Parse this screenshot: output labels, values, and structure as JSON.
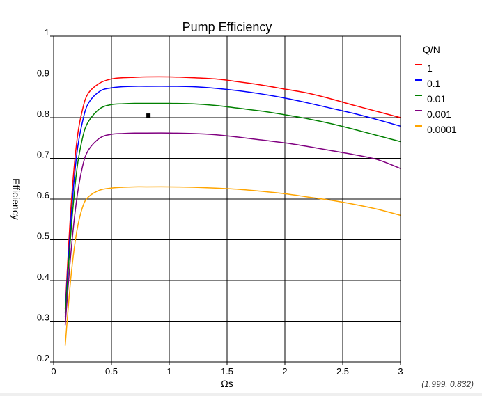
{
  "chart_data": {
    "type": "line",
    "title": "Pump Efficiency",
    "xlabel": "Ωs",
    "ylabel": "Efficiency",
    "xlim": [
      0,
      3
    ],
    "ylim": [
      0.2,
      1
    ],
    "xticks": [
      0,
      0.5,
      1,
      1.5,
      2,
      2.5,
      3
    ],
    "xtick_labels": [
      "0",
      "0.5",
      "1",
      "1.5",
      "2",
      "2.5",
      "3"
    ],
    "yticks": [
      0.2,
      0.3,
      0.4,
      0.5,
      0.6,
      0.7,
      0.8,
      0.9,
      1
    ],
    "ytick_labels": [
      "0.2",
      "0.3",
      "0.4",
      "0.5",
      "0.6",
      "0.7",
      "0.8",
      "0.9",
      "1"
    ],
    "grid": true,
    "legend_title": "Q/N",
    "legend_position": "top-right outside",
    "x": [
      0.1,
      0.15,
      0.2,
      0.25,
      0.3,
      0.4,
      0.5,
      0.6,
      0.7,
      0.8,
      1.0,
      1.2,
      1.4,
      1.6,
      1.8,
      2.0,
      2.2,
      2.4,
      2.6,
      2.8,
      3.0
    ],
    "series": [
      {
        "name": "1",
        "color": "#ff0000",
        "values": [
          0.33,
          0.58,
          0.74,
          0.82,
          0.86,
          0.885,
          0.895,
          0.898,
          0.899,
          0.9,
          0.9,
          0.898,
          0.895,
          0.888,
          0.88,
          0.87,
          0.86,
          0.846,
          0.83,
          0.815,
          0.8
        ]
      },
      {
        "name": "0.1",
        "color": "#0000ff",
        "values": [
          0.32,
          0.55,
          0.71,
          0.79,
          0.835,
          0.865,
          0.873,
          0.876,
          0.877,
          0.877,
          0.877,
          0.876,
          0.872,
          0.866,
          0.858,
          0.848,
          0.836,
          0.823,
          0.81,
          0.795,
          0.779
        ]
      },
      {
        "name": "0.01",
        "color": "#008000",
        "values": [
          0.31,
          0.52,
          0.67,
          0.75,
          0.79,
          0.822,
          0.832,
          0.834,
          0.835,
          0.835,
          0.835,
          0.834,
          0.83,
          0.823,
          0.816,
          0.807,
          0.797,
          0.785,
          0.771,
          0.756,
          0.741
        ]
      },
      {
        "name": "0.001",
        "color": "#800080",
        "values": [
          0.29,
          0.47,
          0.6,
          0.68,
          0.72,
          0.75,
          0.759,
          0.761,
          0.762,
          0.762,
          0.762,
          0.761,
          0.758,
          0.752,
          0.745,
          0.738,
          0.729,
          0.719,
          0.709,
          0.697,
          0.675
        ]
      },
      {
        "name": "0.0001",
        "color": "#ffa500",
        "values": [
          0.24,
          0.41,
          0.52,
          0.58,
          0.605,
          0.622,
          0.627,
          0.629,
          0.63,
          0.63,
          0.63,
          0.629,
          0.627,
          0.624,
          0.619,
          0.613,
          0.605,
          0.597,
          0.587,
          0.575,
          0.56
        ]
      }
    ],
    "annotations": [
      {
        "type": "marker",
        "x": 0.82,
        "y": 0.805,
        "color": "#000000"
      }
    ],
    "cursor_readout": "(1.999, 0.832)"
  }
}
